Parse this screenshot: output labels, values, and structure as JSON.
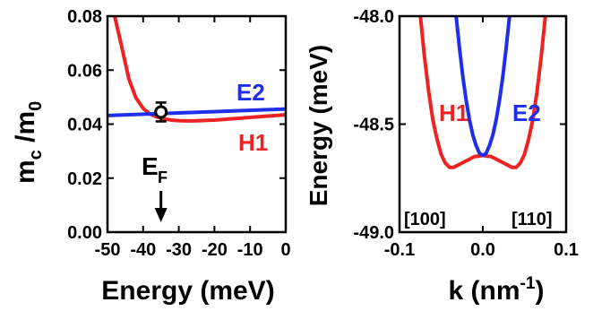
{
  "chart_data": [
    {
      "type": "line",
      "xlabel": "Energy (meV)",
      "ylabel_main": "m",
      "ylabel_sub1": "c",
      "ylabel_mid": " /m",
      "ylabel_sub2": "0",
      "xlim": [
        -50,
        0
      ],
      "ylim": [
        0.0,
        0.08
      ],
      "xticks": [
        -50,
        -40,
        -30,
        -20,
        -10,
        0
      ],
      "xtick_labels": [
        "-50",
        "-40",
        "-30",
        "-20",
        "-10",
        "0"
      ],
      "yticks": [
        0.0,
        0.02,
        0.04,
        0.06,
        0.08
      ],
      "ytick_labels": [
        "0.00",
        "0.02",
        "0.04",
        "0.06",
        "0.08"
      ],
      "series": [
        {
          "name": "H1",
          "color": "#ee2222",
          "x": [
            -48,
            -46,
            -44,
            -42,
            -40,
            -38,
            -36,
            -34,
            -32,
            -30,
            -28,
            -26,
            -24,
            -22,
            -20,
            -18,
            -16,
            -14,
            -12,
            -10,
            -8,
            -6,
            -4,
            -2,
            0
          ],
          "y": [
            0.08,
            0.0686,
            0.0567,
            0.0497,
            0.0458,
            0.0437,
            0.0426,
            0.0419,
            0.0415,
            0.0413,
            0.0412,
            0.0412,
            0.0413,
            0.0414,
            0.0415,
            0.0417,
            0.0419,
            0.0421,
            0.0423,
            0.0425,
            0.0427,
            0.0429,
            0.0431,
            0.0433,
            0.0435
          ]
        },
        {
          "name": "E2",
          "color": "#1f2ee8",
          "x": [
            -50,
            0
          ],
          "y": [
            0.0432,
            0.0456
          ]
        }
      ],
      "data_point": {
        "x": -35,
        "y": 0.0445,
        "yerr": 0.0035
      },
      "annotations": {
        "ef_main": "E",
        "ef_sub": "F",
        "ef_x": -35
      }
    },
    {
      "type": "line",
      "xlabel_main": "k (nm",
      "xlabel_sup": "-1",
      "xlabel_end": ")",
      "ylabel": "Energy (meV)",
      "xlim": [
        -0.1,
        0.1
      ],
      "ylim": [
        -49.0,
        -48.0
      ],
      "xticks": [
        -0.1,
        0.0,
        0.1
      ],
      "xtick_labels": [
        "-0.1",
        "0.0",
        "0.1"
      ],
      "yticks": [
        -49.0,
        -48.5,
        -48.0
      ],
      "ytick_labels": [
        "-49.0",
        "-48.5",
        "-48.0"
      ],
      "series": [
        {
          "name": "H1",
          "color": "#ee2222",
          "x": [
            -0.075,
            -0.07,
            -0.065,
            -0.06,
            -0.055,
            -0.05,
            -0.045,
            -0.04,
            -0.035,
            -0.03,
            -0.025,
            -0.02,
            -0.015,
            -0.01,
            -0.005,
            0.0,
            0.005,
            0.01,
            0.015,
            0.02,
            0.025,
            0.03,
            0.035,
            0.04,
            0.045,
            0.05,
            0.055,
            0.06,
            0.065,
            0.07,
            0.075
          ],
          "y": [
            -48.0,
            -48.19,
            -48.35,
            -48.48,
            -48.57,
            -48.64,
            -48.68,
            -48.7,
            -48.7,
            -48.69,
            -48.68,
            -48.67,
            -48.66,
            -48.65,
            -48.648,
            -48.645,
            -48.648,
            -48.65,
            -48.66,
            -48.67,
            -48.68,
            -48.69,
            -48.7,
            -48.7,
            -48.68,
            -48.64,
            -48.57,
            -48.48,
            -48.35,
            -48.19,
            -48.0
          ]
        },
        {
          "name": "E2",
          "color": "#1f2ee8",
          "x": [
            -0.032,
            -0.028,
            -0.024,
            -0.02,
            -0.016,
            -0.012,
            -0.008,
            -0.004,
            0.0,
            0.004,
            0.008,
            0.012,
            0.016,
            0.02,
            0.024,
            0.028,
            0.032
          ],
          "y": [
            -48.0,
            -48.15,
            -48.28,
            -48.39,
            -48.48,
            -48.55,
            -48.6,
            -48.635,
            -48.645,
            -48.635,
            -48.6,
            -48.55,
            -48.48,
            -48.39,
            -48.28,
            -48.15,
            -48.0
          ]
        }
      ],
      "annotations": {
        "left_dir": "[100]",
        "right_dir": "[110]"
      }
    }
  ]
}
